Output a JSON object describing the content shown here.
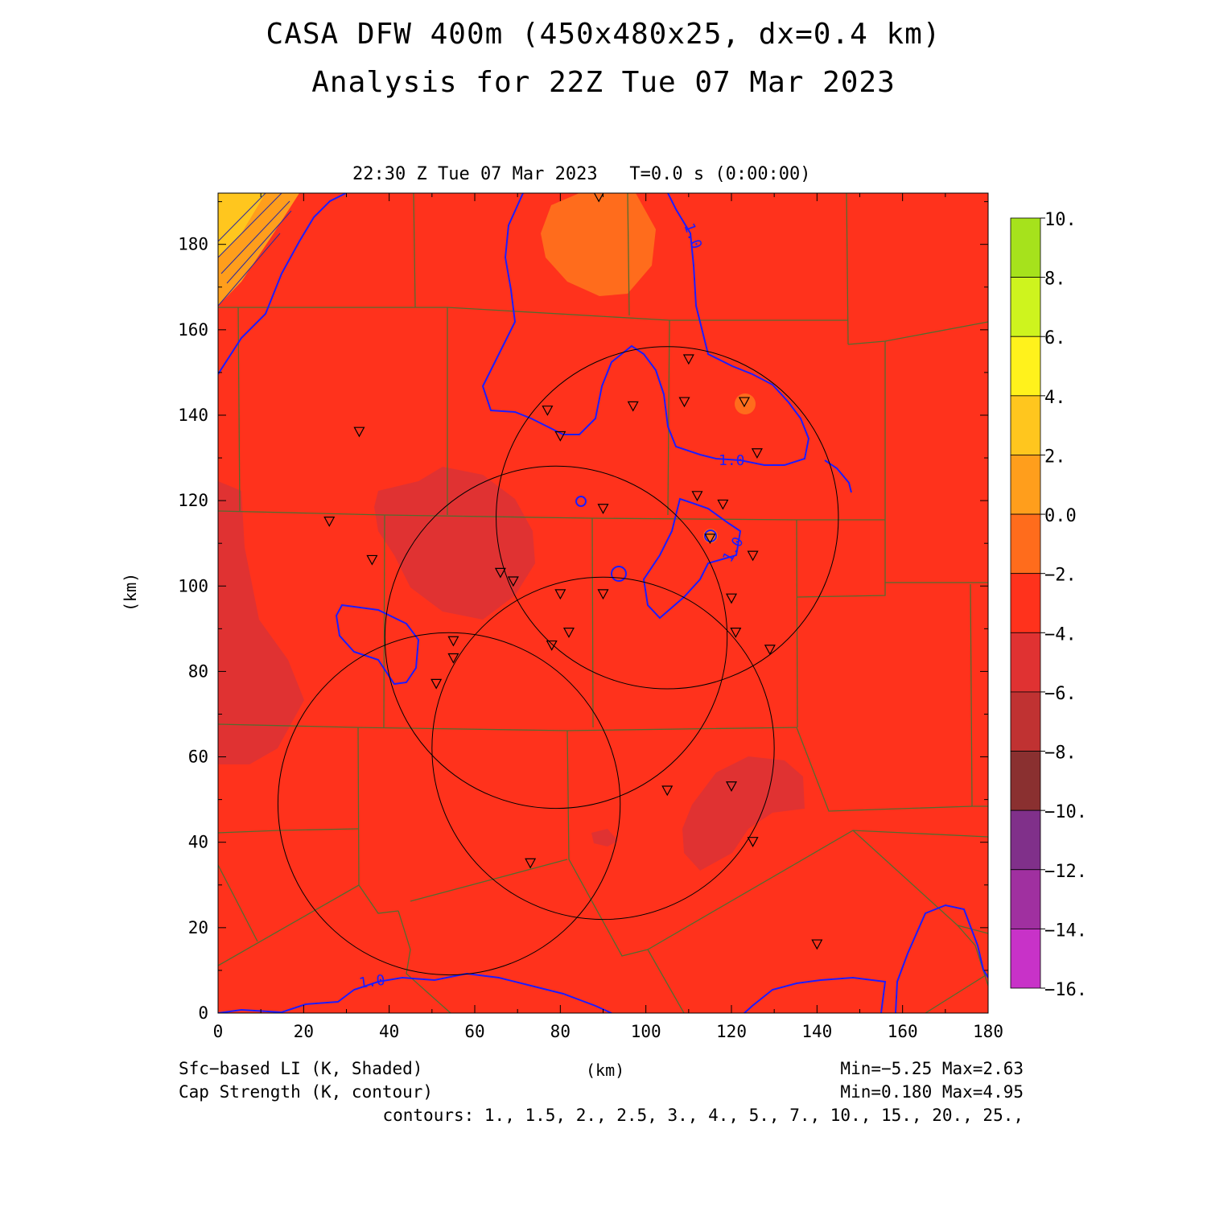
{
  "header": {
    "title_line1": "CASA DFW 400m (450x480x25, dx=0.4 km)",
    "title_line2": "Analysis for 22Z Tue 07 Mar 2023",
    "valid_time": "22:30 Z Tue 07 Mar 2023   T=0.0 s (0:00:00)"
  },
  "axes": {
    "x_label": "(km)",
    "y_label": "(km)",
    "x_ticks": [
      "0",
      "20",
      "40",
      "60",
      "80",
      "100",
      "120",
      "140",
      "160",
      "180"
    ],
    "y_ticks": [
      "0",
      "20",
      "40",
      "60",
      "80",
      "100",
      "120",
      "140",
      "160",
      "180"
    ],
    "x_range": [
      0,
      180
    ],
    "y_range": [
      0,
      192
    ]
  },
  "colorbar": {
    "labels": [
      "10.",
      "8.",
      "6.",
      "4.",
      "2.",
      "0.0",
      "−2.",
      "−4.",
      "−6.",
      "−8.",
      "−10.",
      "−12.",
      "−14.",
      "−16."
    ],
    "colors": [
      "#a6e21c",
      "#cef41e",
      "#fff21c",
      "#ffc61e",
      "#ff9e1c",
      "#ff6c1c",
      "#ff321c",
      "#e03232",
      "#c03232",
      "#8a3030",
      "#80308a",
      "#a030a0",
      "#c832c8",
      "#dc3ce0"
    ]
  },
  "field": {
    "base_color": "#ff321c",
    "contour_color": "#1c1cff",
    "contour_label": "1.0",
    "county_line_color": "#556b2f"
  },
  "footer": {
    "shaded_field": "Sfc−based LI (K, Shaded)",
    "contour_field": "Cap Strength (K, contour)",
    "units": "(km)",
    "shaded_minmax": "Min=−5.25 Max=2.63",
    "contour_minmax": "Min=0.180 Max=4.95",
    "contour_levels": "contours: 1., 1.5, 2., 2.5, 3., 4., 5., 7., 10., 15., 20., 25.,"
  },
  "radar_rings": [
    {
      "cx": 105,
      "cy": 116,
      "r": 40
    },
    {
      "cx": 79,
      "cy": 88,
      "r": 40
    },
    {
      "cx": 90,
      "cy": 62,
      "r": 40
    },
    {
      "cx": 54,
      "cy": 49,
      "r": 40
    }
  ],
  "stations": [
    [
      89,
      191
    ],
    [
      33,
      136
    ],
    [
      26,
      115
    ],
    [
      36,
      106
    ],
    [
      77,
      141
    ],
    [
      80,
      135
    ],
    [
      97,
      142
    ],
    [
      110,
      153
    ],
    [
      109,
      143
    ],
    [
      123,
      143
    ],
    [
      126,
      131
    ],
    [
      112,
      121
    ],
    [
      118,
      119
    ],
    [
      90,
      118
    ],
    [
      115,
      111
    ],
    [
      125,
      107
    ],
    [
      66,
      103
    ],
    [
      69,
      101
    ],
    [
      80,
      98
    ],
    [
      90,
      98
    ],
    [
      120,
      97
    ],
    [
      82,
      89
    ],
    [
      55,
      87
    ],
    [
      55,
      83
    ],
    [
      78,
      86
    ],
    [
      51,
      77
    ],
    [
      121,
      89
    ],
    [
      129,
      85
    ],
    [
      105,
      52
    ],
    [
      120,
      53
    ],
    [
      125,
      40
    ],
    [
      73,
      35
    ],
    [
      140,
      16
    ]
  ]
}
